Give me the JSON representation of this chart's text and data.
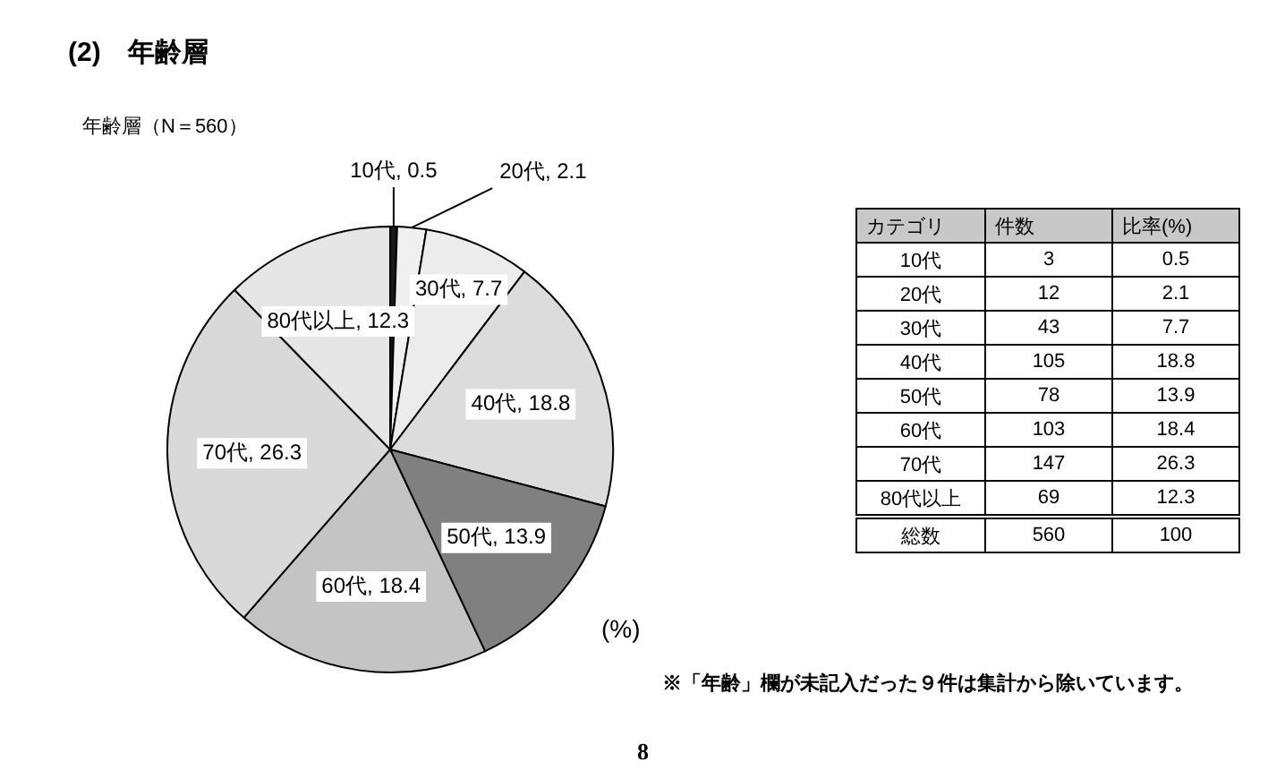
{
  "chart_data": [
    {
      "type": "pie",
      "title": "(2)　年齢層",
      "subtitle": "年齢層（N＝560）",
      "categories": [
        "10代",
        "20代",
        "30代",
        "40代",
        "50代",
        "60代",
        "70代",
        "80代以上"
      ],
      "values": [
        0.5,
        2.1,
        7.7,
        18.8,
        13.9,
        18.4,
        26.3,
        12.3
      ],
      "value_labels": [
        ", 0.5",
        ", 2.1",
        ", 7.7",
        ", 18.8",
        ", 13.9",
        ", 18.4",
        ", 26.3",
        ", 12.3"
      ],
      "colors": [
        "#1a1a1a",
        "#f0f0f0",
        "#ececec",
        "#dcdcdc",
        "#808080",
        "#c4c4c4",
        "#d9d9d9",
        "#e6e6e6"
      ],
      "annotations": [
        "(%)",
        "※「年齢」欄が未記入だった９件は集計から除いています。",
        "8"
      ]
    },
    {
      "type": "heatmap",
      "ylabel": "カテゴリ",
      "categories": [
        "件数",
        "比率(%)"
      ],
      "y_categories": [
        "10代",
        "20代",
        "30代",
        "40代",
        "50代",
        "60代",
        "70代",
        "80代以上",
        "総数"
      ],
      "data_labels": true,
      "cells": [
        [
          3,
          0.5
        ],
        [
          12,
          2.1
        ],
        [
          43,
          7.7
        ],
        [
          105,
          18.8
        ],
        [
          78,
          13.9
        ],
        [
          103,
          18.4
        ],
        [
          147,
          26.3
        ],
        [
          69,
          12.3
        ],
        [
          560,
          100
        ]
      ]
    }
  ]
}
